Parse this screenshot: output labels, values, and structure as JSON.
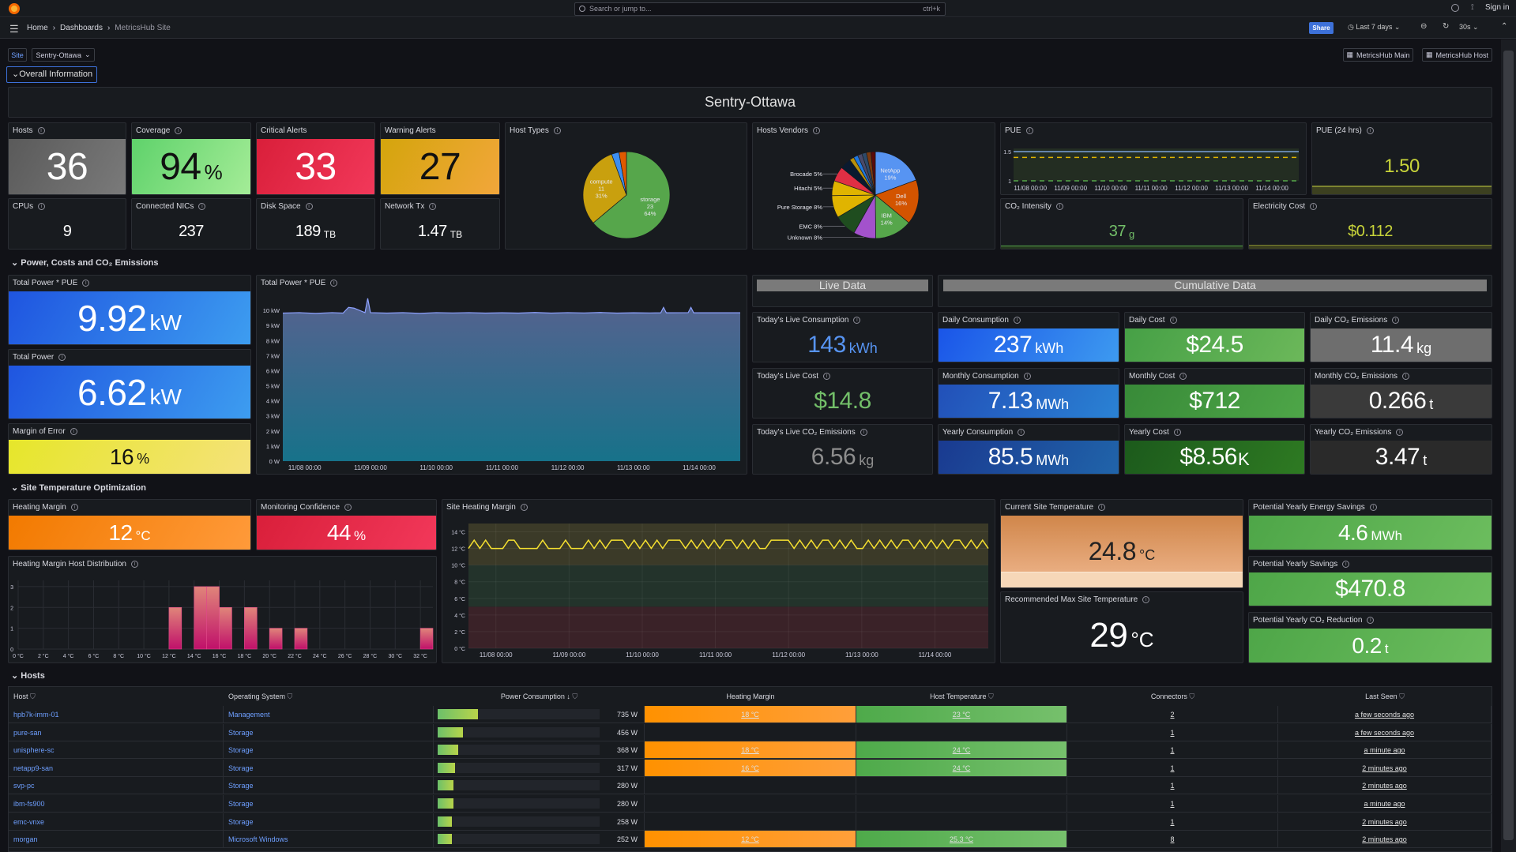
{
  "topbar": {
    "search_placeholder": "Search or jump to...",
    "search_shortcut": "ctrl+k",
    "sign_in": "Sign in"
  },
  "breadcrumb": [
    "Home",
    "Dashboards",
    "MetricsHub Site"
  ],
  "toolbar": {
    "share": "Share",
    "time_range": "Last 7 days",
    "refresh": "30s"
  },
  "variables": {
    "site_label": "Site",
    "site_value": "Sentry-Ottawa"
  },
  "links": [
    "MetricsHub Main",
    "MetricsHub Host"
  ],
  "rows": {
    "overall": "Overall Information",
    "power": "Power, Costs and CO₂ Emissions",
    "temp": "Site Temperature Optimization",
    "hosts": "Hosts"
  },
  "site_title": "Sentry-Ottawa",
  "overview": {
    "hosts": {
      "title": "Hosts",
      "value": "36",
      "unit": ""
    },
    "coverage": {
      "title": "Coverage",
      "value": "94",
      "unit": "%"
    },
    "critical": {
      "title": "Critical Alerts",
      "value": "33",
      "unit": ""
    },
    "warning": {
      "title": "Warning Alerts",
      "value": "27",
      "unit": ""
    },
    "cpus": {
      "title": "CPUs",
      "value": "9",
      "unit": ""
    },
    "nics": {
      "title": "Connected NICs",
      "value": "237",
      "unit": ""
    },
    "disk": {
      "title": "Disk Space",
      "value": "189",
      "unit": "TB"
    },
    "network": {
      "title": "Network Tx",
      "value": "1.47",
      "unit": "TB"
    },
    "host_types_title": "Host Types",
    "vendors_title": "Hosts Vendors",
    "pue_title": "PUE",
    "pue24": {
      "title": "PUE (24 hrs)",
      "value": "1.50"
    },
    "co2_intensity": {
      "title": "CO₂ Intensity",
      "value": "37",
      "unit": "g"
    },
    "electricity": {
      "title": "Electricity Cost",
      "value": "$0.112"
    }
  },
  "power": {
    "total_pue": {
      "title": "Total Power * PUE",
      "value": "9.92",
      "unit": "kW"
    },
    "total": {
      "title": "Total Power",
      "value": "6.62",
      "unit": "kW"
    },
    "margin": {
      "title": "Margin of Error",
      "value": "16",
      "unit": "%"
    },
    "chart_title": "Total Power * PUE",
    "live_header": "Live Data",
    "cumulative_header": "Cumulative Data",
    "live": [
      {
        "title": "Today's Live Consumption",
        "value": "143",
        "unit": "kWh"
      },
      {
        "title": "Today's Live Cost",
        "value": "$14.8",
        "unit": ""
      },
      {
        "title": "Today's Live CO₂ Emissions",
        "value": "6.56",
        "unit": "kg"
      }
    ],
    "cumulative": [
      {
        "title": "Daily Consumption",
        "value": "237",
        "unit": "kWh"
      },
      {
        "title": "Daily Cost",
        "value": "$24.5",
        "unit": ""
      },
      {
        "title": "Daily CO₂ Emissions",
        "value": "11.4",
        "unit": "kg"
      },
      {
        "title": "Monthly Consumption",
        "value": "7.13",
        "unit": "MWh"
      },
      {
        "title": "Monthly Cost",
        "value": "$712",
        "unit": ""
      },
      {
        "title": "Monthly CO₂ Emissions",
        "value": "0.266",
        "unit": "t"
      },
      {
        "title": "Yearly Consumption",
        "value": "85.5",
        "unit": "MWh"
      },
      {
        "title": "Yearly Cost",
        "value": "$8.56",
        "unit": "K"
      },
      {
        "title": "Yearly CO₂ Emissions",
        "value": "3.47",
        "unit": "t"
      }
    ]
  },
  "temperature": {
    "heating_margin": {
      "title": "Heating Margin",
      "value": "12",
      "unit": "°C"
    },
    "confidence": {
      "title": "Monitoring Confidence",
      "value": "44",
      "unit": "%"
    },
    "histogram_title": "Heating Margin Host Distribution",
    "site_margin_title": "Site Heating Margin",
    "current": {
      "title": "Current Site Temperature",
      "value": "24.8",
      "unit": "°C"
    },
    "recommended": {
      "title": "Recommended Max Site Temperature",
      "value": "29",
      "unit": "°C"
    },
    "energy_savings": {
      "title": "Potential Yearly Energy Savings",
      "value": "4.6",
      "unit": "MWh"
    },
    "savings": {
      "title": "Potential Yearly Savings",
      "value": "$470.8",
      "unit": ""
    },
    "co2_reduction": {
      "title": "Potential Yearly CO₂ Reduction",
      "value": "0.2",
      "unit": "t"
    }
  },
  "hosts_table": {
    "columns": [
      "Host",
      "Operating System",
      "Power Consumption ↓",
      "Heating Margin",
      "Host Temperature",
      "Connectors",
      "Last Seen"
    ],
    "rows": [
      {
        "host": "hpb7k-imm-01",
        "os": "Management",
        "power": "735 W",
        "power_w": 735,
        "margin": "18 °C",
        "temp": "23 °C",
        "connectors": "2",
        "last_seen": "a few seconds ago"
      },
      {
        "host": "pure-san",
        "os": "Storage",
        "power": "456 W",
        "power_w": 456,
        "margin": "",
        "temp": "",
        "connectors": "1",
        "last_seen": "a few seconds ago"
      },
      {
        "host": "unisphere-sc",
        "os": "Storage",
        "power": "368 W",
        "power_w": 368,
        "margin": "18 °C",
        "temp": "24 °C",
        "connectors": "1",
        "last_seen": "a minute ago"
      },
      {
        "host": "netapp9-san",
        "os": "Storage",
        "power": "317 W",
        "power_w": 317,
        "margin": "16 °C",
        "temp": "24 °C",
        "connectors": "1",
        "last_seen": "2 minutes ago"
      },
      {
        "host": "svp-pc",
        "os": "Storage",
        "power": "280 W",
        "power_w": 280,
        "margin": "",
        "temp": "",
        "connectors": "1",
        "last_seen": "2 minutes ago"
      },
      {
        "host": "ibm-fs900",
        "os": "Storage",
        "power": "280 W",
        "power_w": 280,
        "margin": "",
        "temp": "",
        "connectors": "1",
        "last_seen": "a minute ago"
      },
      {
        "host": "emc-vnxe",
        "os": "Storage",
        "power": "258 W",
        "power_w": 258,
        "margin": "",
        "temp": "",
        "connectors": "1",
        "last_seen": "2 minutes ago"
      },
      {
        "host": "morgan",
        "os": "Microsoft Windows",
        "power": "252 W",
        "power_w": 252,
        "margin": "12 °C",
        "temp": "25.3 °C",
        "connectors": "8",
        "last_seen": "2 minutes ago"
      }
    ]
  },
  "colors": {
    "accent": "#3d71d9",
    "critical": "#e02f44",
    "warning": "#f2a93b",
    "ok": "#73bf69",
    "heating": "#ff9830"
  },
  "chart_data": [
    {
      "type": "pie",
      "id": "host_types",
      "slices": [
        {
          "name": "storage",
          "count": "23",
          "percent": "64%",
          "value": 23,
          "color": "#56a64b"
        },
        {
          "name": "compute",
          "count": "11",
          "percent": "31%",
          "value": 11,
          "color": "#c9a00e"
        },
        {
          "name": "",
          "value": 1,
          "color": "#3d8ef0"
        },
        {
          "name": "",
          "value": 1,
          "color": "#e05a00"
        }
      ]
    },
    {
      "type": "pie",
      "id": "vendors",
      "slices": [
        {
          "name": "NetApp",
          "percent": "19%",
          "value": 7,
          "color": "#5794f2"
        },
        {
          "name": "Dell",
          "percent": "16%",
          "value": 6,
          "color": "#d35400"
        },
        {
          "name": "IBM",
          "percent": "14%",
          "value": 5,
          "color": "#56a64b"
        },
        {
          "name": "Unknown",
          "percent": "8%",
          "value": 3,
          "color": "#a352cc"
        },
        {
          "name": "EMC",
          "percent": "8%",
          "value": 3,
          "color": "#1f4d1f"
        },
        {
          "name": "Pure Storage",
          "percent": "8%",
          "value": 3,
          "color": "#e0b400"
        },
        {
          "name": "Hitachi",
          "percent": "5%",
          "value": 2,
          "color": "#e0b400"
        },
        {
          "name": "Brocade",
          "percent": "5%",
          "value": 2,
          "color": "#e02f44"
        },
        {
          "name": "",
          "value": 1.5,
          "color": "#0a1a2f"
        },
        {
          "name": "",
          "value": 0.6,
          "color": "#b8900a"
        },
        {
          "name": "",
          "value": 0.6,
          "color": "#1f78e0"
        },
        {
          "name": "",
          "value": 0.6,
          "color": "#4a4a6a"
        },
        {
          "name": "",
          "value": 0.6,
          "color": "#2e4a6a"
        },
        {
          "name": "",
          "value": 0.6,
          "color": "#7a3a10"
        },
        {
          "name": "",
          "value": 0.6,
          "color": "#5a0a0a"
        }
      ]
    },
    {
      "type": "line",
      "id": "pue",
      "x_ticks": [
        "11/08 00:00",
        "11/09 00:00",
        "11/10 00:00",
        "11/11 00:00",
        "11/12 00:00",
        "11/13 00:00",
        "11/14 00:00"
      ],
      "y_ticks": [
        "1",
        "1.5"
      ],
      "ylim": [
        1,
        1.5
      ],
      "series": [
        {
          "values": [
            1.5,
            1.5
          ]
        }
      ],
      "thresholds": [
        {
          "value": 1.4,
          "color": "#e0b400"
        },
        {
          "value": 1.0,
          "color": "#56a64b"
        }
      ]
    },
    {
      "type": "area",
      "id": "total_power",
      "x_ticks": [
        "11/08 00:00",
        "11/09 00:00",
        "11/10 00:00",
        "11/11 00:00",
        "11/12 00:00",
        "11/13 00:00",
        "11/14 00:00"
      ],
      "y_ticks": [
        "0 W",
        "1 kW",
        "2 kW",
        "3 kW",
        "4 kW",
        "5 kW",
        "6 kW",
        "7 kW",
        "8 kW",
        "9 kW",
        "10 kW"
      ],
      "ylim": [
        0,
        11
      ],
      "x": [
        "11/07 16:00",
        "11/07 22:00",
        "11/08 04:00",
        "11/08 10:00",
        "11/08 14:00",
        "11/08 16:00",
        "11/08 18:00",
        "11/08 22:00",
        "11/08 23:00",
        "11/09 00:00",
        "11/09 06:00",
        "11/09 12:00",
        "11/09 18:00",
        "11/10 00:00",
        "11/10 06:00",
        "11/10 12:00",
        "11/10 18:00",
        "11/11 00:00",
        "11/11 06:00",
        "11/11 12:00",
        "11/11 18:00",
        "11/12 00:00",
        "11/12 06:00",
        "11/12 12:00",
        "11/12 18:00",
        "11/13 00:00",
        "11/13 06:00",
        "11/13 10:00",
        "11/13 11:00",
        "11/13 12:00",
        "11/13 20:00",
        "11/13 21:00",
        "11/13 22:00",
        "11/14 06:00",
        "11/14 15:00"
      ],
      "values": [
        9.82,
        9.85,
        9.8,
        9.85,
        9.82,
        10.2,
        10.15,
        9.85,
        10.8,
        9.85,
        9.82,
        9.85,
        9.8,
        9.85,
        9.83,
        9.85,
        9.82,
        9.84,
        9.82,
        9.86,
        9.82,
        9.85,
        9.83,
        9.86,
        9.82,
        9.84,
        9.83,
        9.84,
        10.2,
        9.84,
        9.85,
        10.2,
        9.84,
        9.84,
        9.84
      ]
    },
    {
      "type": "line",
      "id": "site_heating_margin",
      "x_ticks": [
        "11/08 00:00",
        "11/09 00:00",
        "11/10 00:00",
        "11/11 00:00",
        "11/12 00:00",
        "11/13 00:00",
        "11/14 00:00"
      ],
      "y_ticks": [
        "0 °C",
        "2 °C",
        "4 °C",
        "6 °C",
        "8 °C",
        "10 °C",
        "12 °C",
        "14 °C"
      ],
      "ylim": [
        0,
        15
      ],
      "bands": [
        {
          "from": 0,
          "to": 5,
          "color": "#3a2228"
        },
        {
          "from": 5,
          "to": 10,
          "color": "#23332b"
        },
        {
          "from": 10,
          "to": 15,
          "color": "#3b3a28"
        }
      ],
      "values": [
        12,
        13,
        12,
        13,
        12,
        12,
        12,
        13,
        13,
        12,
        12,
        12,
        12,
        13,
        12,
        12,
        12,
        13,
        12,
        12,
        12,
        13,
        12,
        13,
        12,
        13,
        13,
        13,
        12,
        13,
        12,
        13,
        12,
        13,
        12,
        13,
        13,
        13,
        12,
        13,
        12,
        13,
        12,
        13,
        12,
        13,
        13,
        12,
        13,
        12,
        13,
        12,
        12,
        13,
        13,
        13,
        13,
        12,
        13,
        12,
        13,
        12,
        13,
        13,
        12,
        13,
        12,
        13,
        12,
        12,
        13,
        12,
        13,
        12,
        13,
        12,
        13,
        13,
        12,
        13,
        12,
        13,
        12,
        13,
        12,
        13,
        13,
        12,
        13,
        12,
        13,
        12
      ]
    },
    {
      "type": "bar",
      "id": "histogram",
      "x_ticks": [
        "0 °C",
        "2 °C",
        "4 °C",
        "6 °C",
        "8 °C",
        "10 °C",
        "12 °C",
        "14 °C",
        "16 °C",
        "18 °C",
        "20 °C",
        "22 °C",
        "24 °C",
        "26 °C",
        "28 °C",
        "30 °C",
        "32 °C"
      ],
      "y_ticks": [
        "0",
        "1",
        "2",
        "3"
      ],
      "ylim": [
        0,
        3.3
      ],
      "bins": [
        {
          "from": 12,
          "to": 13,
          "count": 2
        },
        {
          "from": 14,
          "to": 15,
          "count": 3
        },
        {
          "from": 15,
          "to": 16,
          "count": 3
        },
        {
          "from": 16,
          "to": 17,
          "count": 2
        },
        {
          "from": 18,
          "to": 19,
          "count": 2
        },
        {
          "from": 20,
          "to": 21,
          "count": 1
        },
        {
          "from": 22,
          "to": 23,
          "count": 1
        },
        {
          "from": 32,
          "to": 33,
          "count": 1
        }
      ]
    }
  ]
}
